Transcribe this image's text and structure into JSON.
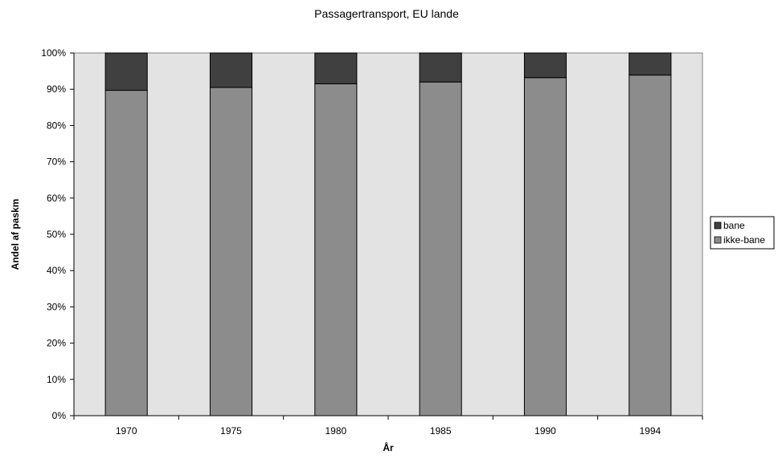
{
  "chart_data": {
    "type": "bar",
    "stacked": true,
    "percent": true,
    "title": "Passagertransport, EU lande",
    "xlabel": "År",
    "ylabel": "Andel af paskm",
    "categories": [
      "1970",
      "1975",
      "1980",
      "1985",
      "1990",
      "1994"
    ],
    "series": [
      {
        "name": "ikke-bane",
        "values": [
          89.7,
          90.5,
          91.5,
          92.0,
          93.2,
          93.9
        ],
        "color": "#8c8c8c"
      },
      {
        "name": "bane",
        "values": [
          10.3,
          9.5,
          8.5,
          8.0,
          6.8,
          6.1
        ],
        "color": "#404040"
      }
    ],
    "ylim": [
      0,
      100
    ],
    "y_ticks": [
      "0%",
      "10%",
      "20%",
      "30%",
      "40%",
      "50%",
      "60%",
      "70%",
      "80%",
      "90%",
      "100%"
    ],
    "grid": false,
    "legend_placement": "right",
    "plot_background": "#e3e3e3"
  }
}
